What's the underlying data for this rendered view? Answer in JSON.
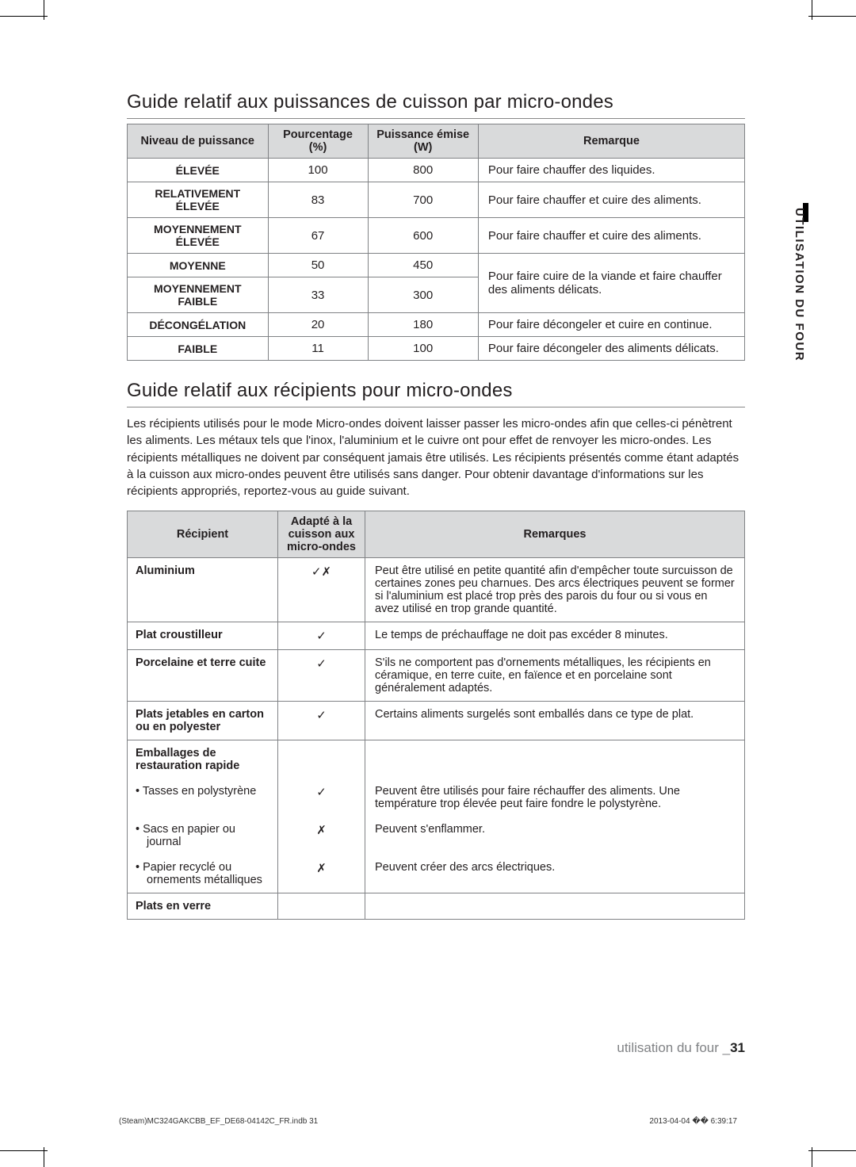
{
  "section1_title": "Guide relatif aux puissances de cuisson par micro-ondes",
  "t1": {
    "headers": [
      "Niveau de puissance",
      "Pourcentage (%)",
      "Puissance émise (W)",
      "Remarque"
    ],
    "rows": [
      {
        "level": "ÉLEVÉE",
        "pct": "100",
        "w": "800",
        "note": "Pour faire chauffer des liquides."
      },
      {
        "level": "RELATIVEMENT ÉLEVÉE",
        "pct": "83",
        "w": "700",
        "note": "Pour faire chauffer et cuire des aliments."
      },
      {
        "level": "MOYENNEMENT ÉLEVÉE",
        "pct": "67",
        "w": "600",
        "note": "Pour faire chauffer et cuire des aliments."
      },
      {
        "level": "MOYENNE",
        "pct": "50",
        "w": "450",
        "note": "Pour faire cuire de la viande et faire chauffer des aliments délicats.",
        "rowspan_note": 2
      },
      {
        "level": "MOYENNEMENT FAIBLE",
        "pct": "33",
        "w": "300"
      },
      {
        "level": "DÉCONGÉLATION",
        "pct": "20",
        "w": "180",
        "note": "Pour faire décongeler et cuire en continue."
      },
      {
        "level": "FAIBLE",
        "pct": "11",
        "w": "100",
        "note": "Pour faire décongeler des aliments délicats."
      }
    ]
  },
  "section2_title": "Guide relatif aux récipients pour micro-ondes",
  "body_text": "Les récipients utilisés pour le mode Micro-ondes doivent laisser passer les micro-ondes afin que celles-ci pénètrent les aliments. Les métaux tels que l'inox, l'aluminium et le cuivre ont pour effet de renvoyer les micro-ondes. Les récipients métalliques ne doivent par conséquent jamais être utilisés. Les récipients présentés comme étant adaptés à la cuisson aux micro-ondes peuvent être utilisés sans danger. Pour obtenir davantage d'informations sur les récipients appropriés, reportez-vous au guide suivant.",
  "t2": {
    "headers": [
      "Récipient",
      "Adapté à la cuisson aux micro-ondes",
      "Remarques"
    ],
    "rows": [
      {
        "rec": "Aluminium",
        "sym": "✓✗",
        "rem": "Peut être utilisé en petite quantité afin d'empêcher toute surcuisson de certaines zones peu charnues. Des arcs électriques peuvent se former si l'aluminium est placé trop près des parois du four ou si vous en avez utilisé en trop grande quantité."
      },
      {
        "rec": "Plat croustilleur",
        "sym": "✓",
        "rem": "Le temps de préchauffage ne doit pas excéder 8 minutes."
      },
      {
        "rec": "Porcelaine et terre cuite",
        "sym": "✓",
        "rem": "S'ils ne comportent pas d'ornements métalliques, les récipients en céramique, en terre cuite, en faïence et en porcelaine sont généralement adaptés."
      },
      {
        "rec": "Plats jetables en carton ou en polyester",
        "sym": "✓",
        "rem": "Certains aliments surgelés sont emballés dans ce type de plat."
      },
      {
        "rec": "Emballages de restauration rapide",
        "sym": "",
        "rem": "",
        "header": true
      },
      {
        "rec": "Tasses en polystyrène",
        "sym": "✓",
        "rem": "Peuvent être utilisés pour faire réchauffer des aliments. Une température trop élevée peut faire fondre le polystyrène.",
        "bullet": true
      },
      {
        "rec": "Sacs en papier ou journal",
        "sym": "✗",
        "rem": "Peuvent s'enflammer.",
        "bullet": true
      },
      {
        "rec": "Papier recyclé ou ornements métalliques",
        "sym": "✗",
        "rem": "Peuvent créer des arcs électriques.",
        "bullet": true,
        "last_sub": true
      },
      {
        "rec": "Plats en verre",
        "sym": "",
        "rem": ""
      }
    ]
  },
  "side_label": "UTILISATION DU FOUR",
  "footer_text": "utilisation du four _",
  "footer_page": "31",
  "print_left": "(Steam)MC324GAKCBB_EF_DE68-04142C_FR.indb   31",
  "print_right": "2013-04-04   �� 6:39:17"
}
